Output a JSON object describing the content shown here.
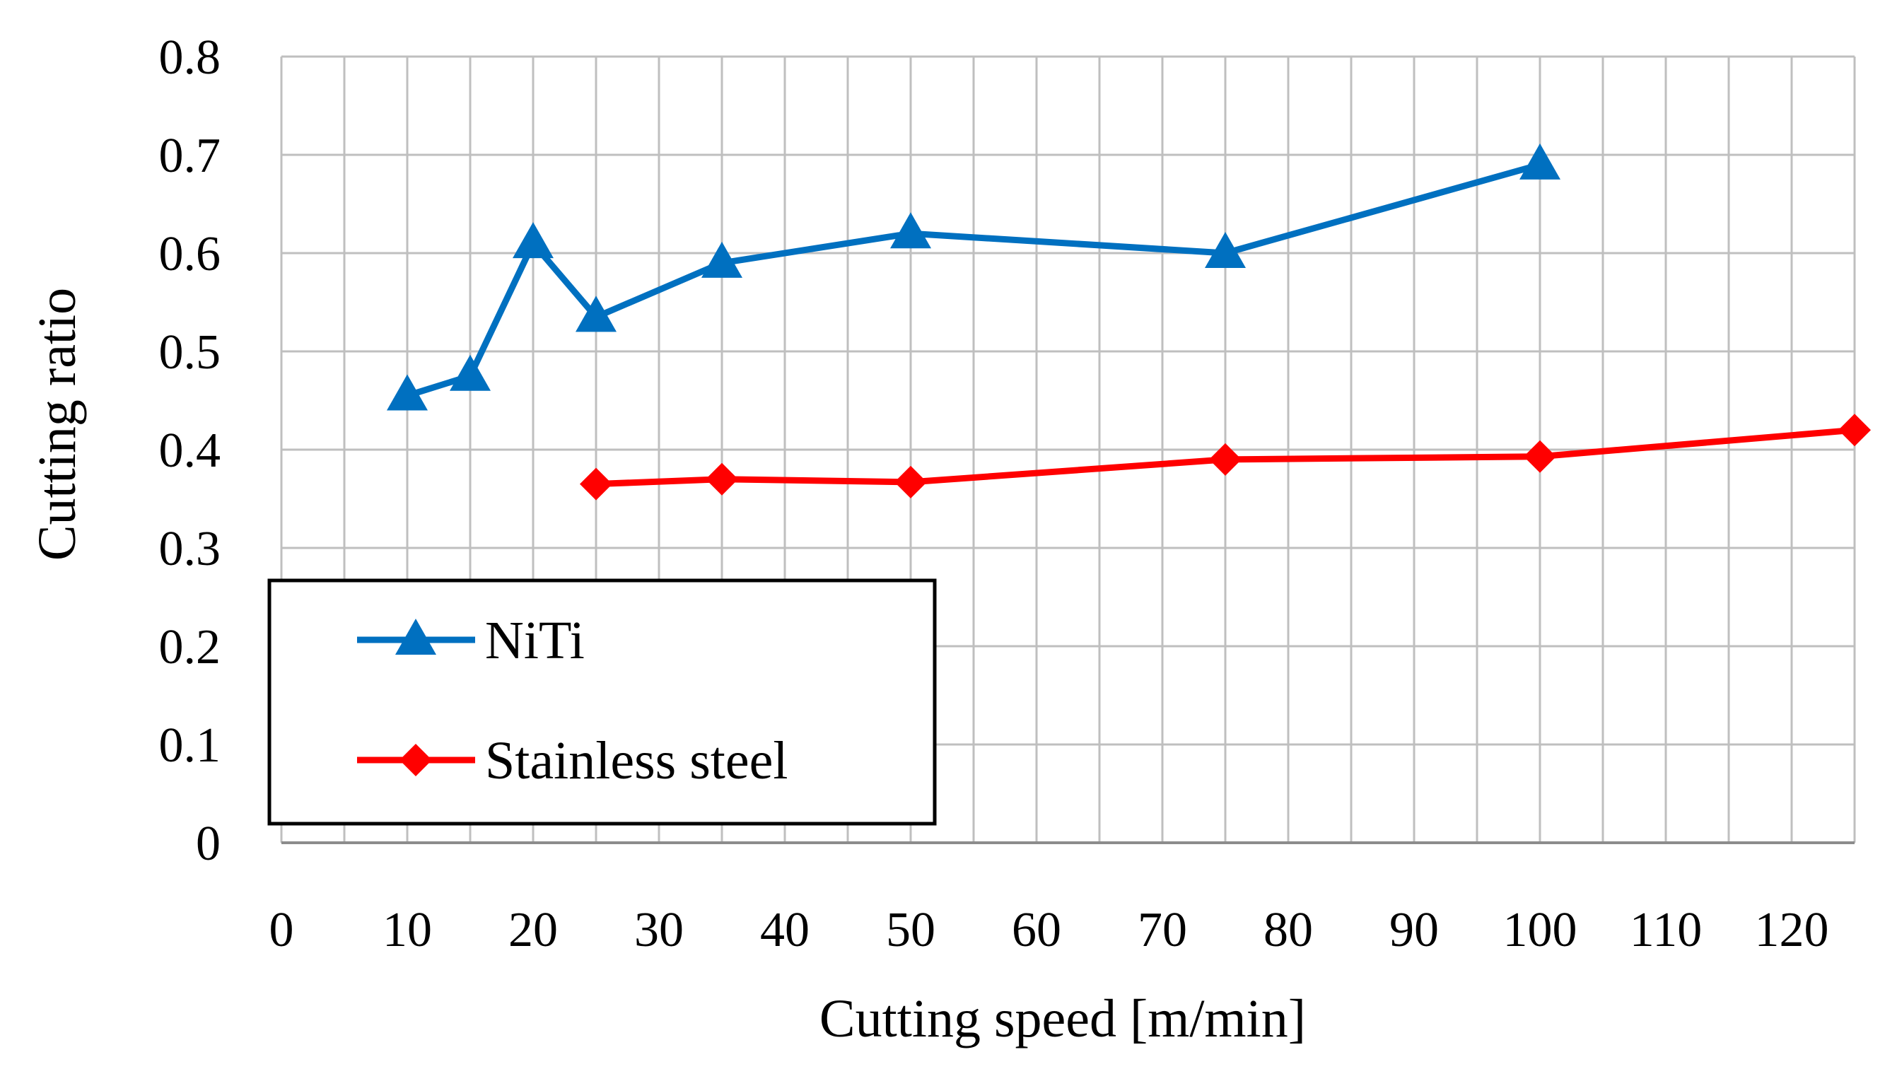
{
  "chart_data": {
    "type": "line",
    "title": "",
    "xlabel": "Cutting speed [m/min]",
    "ylabel": "Cutting ratio",
    "xlim": [
      0,
      125
    ],
    "ylim": [
      0,
      0.8
    ],
    "x_ticks": [
      "0",
      "10",
      "20",
      "30",
      "40",
      "50",
      "60",
      "70",
      "80",
      "90",
      "100",
      "110",
      "120"
    ],
    "y_ticks": [
      "0",
      "0.1",
      "0.2",
      "0.3",
      "0.4",
      "0.5",
      "0.6",
      "0.7",
      "0.8"
    ],
    "grid": true,
    "legend_position": "bottom-left",
    "series": [
      {
        "name": "NiTi",
        "color": "#0070C0",
        "marker": "triangle",
        "points": [
          {
            "x": 10,
            "y": 0.455
          },
          {
            "x": 15,
            "y": 0.475
          },
          {
            "x": 20,
            "y": 0.61
          },
          {
            "x": 25,
            "y": 0.535
          },
          {
            "x": 35,
            "y": 0.59
          },
          {
            "x": 50,
            "y": 0.62
          },
          {
            "x": 75,
            "y": 0.6
          },
          {
            "x": 100,
            "y": 0.69
          }
        ]
      },
      {
        "name": "Stainless steel",
        "color": "#FF0000",
        "marker": "diamond",
        "points": [
          {
            "x": 25,
            "y": 0.365
          },
          {
            "x": 35,
            "y": 0.37
          },
          {
            "x": 50,
            "y": 0.367
          },
          {
            "x": 75,
            "y": 0.39
          },
          {
            "x": 100,
            "y": 0.393
          },
          {
            "x": 125,
            "y": 0.42
          }
        ]
      }
    ]
  }
}
